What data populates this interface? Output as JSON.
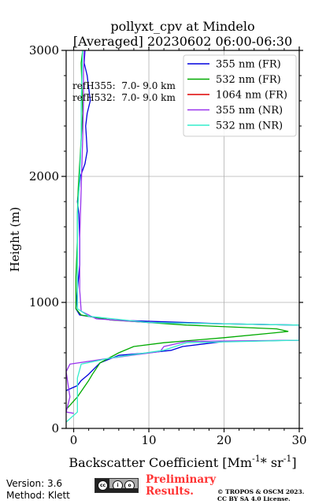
{
  "chart_data": {
    "type": "line",
    "title": "pollyxt_cpv at Mindelo",
    "subtitle": "[Averaged] 20230602 06:00-06:30",
    "xlabel": "Backscatter Coefficient [Mm",
    "xlabel_sup1": "-1",
    "xlabel_mid": "* sr",
    "xlabel_sup2": "-1",
    "xlabel_end": "]",
    "ylabel": "Height (m)",
    "xlim": [
      -1,
      30
    ],
    "ylim": [
      0,
      3000
    ],
    "xticks": [
      0,
      10,
      20,
      30
    ],
    "yticks": [
      0,
      1000,
      2000,
      3000
    ],
    "grid": true,
    "legend_position": "top-right",
    "annotations": [
      "refH355:  7.0- 9.0 km",
      "refH532:  7.0- 9.0 km"
    ],
    "series": [
      {
        "name": "355 nm (FR)",
        "color": "#0000dd",
        "x": [
          -1.0,
          0.5,
          1.0,
          2.0,
          3.5,
          6.0,
          10.0,
          13.0,
          14.5,
          20.0,
          30.0,
          30.0,
          20.0,
          5.0,
          0.8,
          0.3,
          0.5,
          0.8,
          0.8,
          0.7,
          0.5,
          0.9,
          1.5,
          1.8,
          1.7,
          1.6,
          1.8,
          2.2,
          1.8,
          1.4,
          1.5
        ],
        "y": [
          300,
          340,
          380,
          430,
          520,
          580,
          600,
          620,
          650,
          690,
          700,
          820,
          830,
          860,
          900,
          950,
          1100,
          1300,
          1500,
          1700,
          1800,
          2000,
          2100,
          2200,
          2300,
          2400,
          2500,
          2600,
          2800,
          2900,
          3000
        ]
      },
      {
        "name": "532 nm (FR)",
        "color": "#00aa00",
        "x": [
          -1.0,
          0.5,
          2.0,
          2.5,
          3.5,
          6.0,
          8.0,
          12.0,
          20.0,
          27.0,
          28.5,
          27.0,
          15.0,
          5.0,
          1.0,
          0.3,
          0.3,
          0.5,
          0.5,
          0.6,
          0.8,
          1.0,
          1.2,
          1.1,
          1.0,
          1.2
        ],
        "y": [
          150,
          250,
          380,
          430,
          520,
          600,
          650,
          680,
          720,
          760,
          770,
          790,
          820,
          860,
          900,
          950,
          1200,
          1500,
          1700,
          1900,
          2100,
          2300,
          2500,
          2700,
          2900,
          3000
        ]
      },
      {
        "name": "1064 nm (FR)",
        "color": "#dd0000",
        "x": [],
        "y": []
      },
      {
        "name": "355 nm (NR)",
        "color": "#9933ee",
        "x": [
          0.0,
          -1.0,
          -0.5,
          -1.0,
          -0.5,
          4.0,
          11.5,
          12.0,
          15.0,
          30.0,
          30.0,
          10.0,
          3.0,
          1.0,
          0.8,
          0.8,
          1.0,
          1.2,
          1.3,
          1.3,
          1.4
        ],
        "y": [
          120,
          130,
          250,
          450,
          510,
          550,
          610,
          650,
          690,
          700,
          820,
          840,
          870,
          930,
          1100,
          1500,
          1900,
          2300,
          2600,
          2800,
          3000
        ]
      },
      {
        "name": "532 nm (NR)",
        "color": "#33eecc",
        "x": [
          -1.0,
          0.5,
          0.5,
          0.5,
          1.0,
          5.0,
          12.0,
          15.0,
          30.0,
          30.0,
          10.0,
          2.0,
          0.5,
          0.5,
          0.5,
          0.8,
          1.0,
          1.0,
          1.1,
          1.2
        ],
        "y": [
          50,
          130,
          250,
          400,
          510,
          560,
          620,
          680,
          700,
          820,
          840,
          890,
          950,
          1300,
          1700,
          2000,
          2300,
          2600,
          2800,
          3000
        ]
      }
    ]
  },
  "footer": {
    "version": "Version: 3.6",
    "method": "Method: Klett",
    "preliminary_line1": "Preliminary",
    "preliminary_line2": "Results.",
    "license_line1": "© TROPOS & OSCM 2023.",
    "license_line2": "CC BY SA 4.0 License."
  }
}
